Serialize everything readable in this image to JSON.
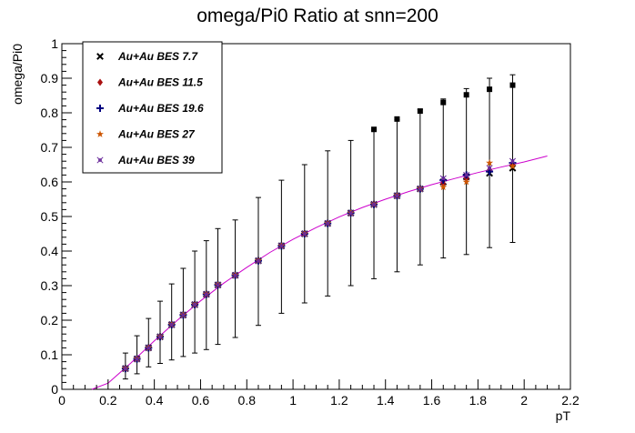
{
  "chart_data": {
    "type": "scatter",
    "title": "omega/Pi0 Ratio at   snn=200",
    "xlabel": "pT",
    "ylabel": "omega/Pi0",
    "xlim": [
      0,
      2.2
    ],
    "ylim": [
      0,
      1
    ],
    "x_ticks": [
      "0",
      "0.2",
      "0.4",
      "0.6",
      "0.8",
      "1",
      "1.2",
      "1.4",
      "1.6",
      "1.8",
      "2",
      "2.2"
    ],
    "y_ticks": [
      "0",
      "0.1",
      "0.2",
      "0.3",
      "0.4",
      "0.5",
      "0.6",
      "0.7",
      "0.8",
      "0.9",
      "1"
    ],
    "grid": false,
    "legend_position": "top-left",
    "x": [
      0.275,
      0.325,
      0.375,
      0.425,
      0.475,
      0.525,
      0.575,
      0.625,
      0.675,
      0.75,
      0.85,
      0.95,
      1.05,
      1.15,
      1.25,
      1.35,
      1.45,
      1.55,
      1.65,
      1.75,
      1.85,
      1.95
    ],
    "error_bars": {
      "lower": [
        0.03,
        0.045,
        0.065,
        0.075,
        0.085,
        0.095,
        0.105,
        0.115,
        0.13,
        0.15,
        0.185,
        0.22,
        0.25,
        0.27,
        0.3,
        0.32,
        0.34,
        0.36,
        0.38,
        0.39,
        0.41,
        0.425
      ],
      "upper": [
        0.105,
        0.155,
        0.205,
        0.255,
        0.305,
        0.35,
        0.4,
        0.43,
        0.465,
        0.49,
        0.555,
        0.605,
        0.65,
        0.69,
        0.72,
        0.75,
        0.78,
        0.81,
        0.84,
        0.87,
        0.9,
        0.91
      ]
    },
    "series": [
      {
        "name": "Au+Au BES 7.7",
        "marker": "x-cross",
        "color": "#000000",
        "values": [
          0.06,
          0.088,
          0.12,
          0.152,
          0.187,
          0.215,
          0.245,
          0.275,
          0.302,
          0.33,
          0.372,
          0.415,
          0.45,
          0.48,
          0.51,
          0.535,
          0.56,
          0.58,
          0.6,
          0.615,
          0.625,
          0.64
        ]
      },
      {
        "name": "Au+Au BES 11.5",
        "marker": "diamond",
        "color": "#aa1111",
        "values": [
          0.06,
          0.088,
          0.12,
          0.152,
          0.187,
          0.215,
          0.245,
          0.275,
          0.302,
          0.33,
          0.372,
          0.415,
          0.45,
          0.48,
          0.51,
          0.535,
          0.56,
          0.58,
          0.595,
          0.61,
          0.635,
          0.65
        ]
      },
      {
        "name": "Au+Au BES 19.6",
        "marker": "plus",
        "color": "#000080",
        "values": [
          0.06,
          0.088,
          0.12,
          0.152,
          0.187,
          0.215,
          0.245,
          0.275,
          0.302,
          0.33,
          0.372,
          0.415,
          0.45,
          0.48,
          0.51,
          0.535,
          0.56,
          0.58,
          0.605,
          0.62,
          0.63,
          0.655
        ]
      },
      {
        "name": "Au+Au BES 27",
        "marker": "star",
        "color": "#cc5500",
        "values": [
          0.06,
          0.088,
          0.12,
          0.152,
          0.187,
          0.215,
          0.245,
          0.275,
          0.302,
          0.33,
          0.372,
          0.415,
          0.45,
          0.48,
          0.51,
          0.535,
          0.56,
          0.58,
          0.585,
          0.6,
          0.655,
          0.645
        ]
      },
      {
        "name": "Au+Au BES 39",
        "marker": "open-cross",
        "color": "#6a2a9a",
        "values": [
          0.06,
          0.088,
          0.12,
          0.152,
          0.187,
          0.215,
          0.245,
          0.275,
          0.302,
          0.33,
          0.372,
          0.415,
          0.45,
          0.48,
          0.51,
          0.535,
          0.56,
          0.58,
          0.61,
          0.62,
          0.64,
          0.66
        ]
      },
      {
        "name": "",
        "marker": "filled-square",
        "color": "#000000",
        "x": [
          1.35,
          1.45,
          1.55,
          1.65,
          1.75,
          1.85,
          1.95
        ],
        "values": [
          0.752,
          0.782,
          0.805,
          0.83,
          0.852,
          0.868,
          0.88
        ]
      }
    ],
    "fit_curve": {
      "color": "#cc00cc",
      "x": [
        0.13,
        0.2,
        0.3,
        0.4,
        0.5,
        0.6,
        0.7,
        0.8,
        0.9,
        1.0,
        1.1,
        1.2,
        1.3,
        1.4,
        1.5,
        1.6,
        1.7,
        1.8,
        1.9,
        2.0,
        2.1
      ],
      "values": [
        0.0,
        0.018,
        0.077,
        0.14,
        0.2,
        0.256,
        0.307,
        0.353,
        0.396,
        0.434,
        0.468,
        0.499,
        0.526,
        0.55,
        0.572,
        0.592,
        0.61,
        0.627,
        0.643,
        0.658,
        0.675
      ]
    }
  }
}
